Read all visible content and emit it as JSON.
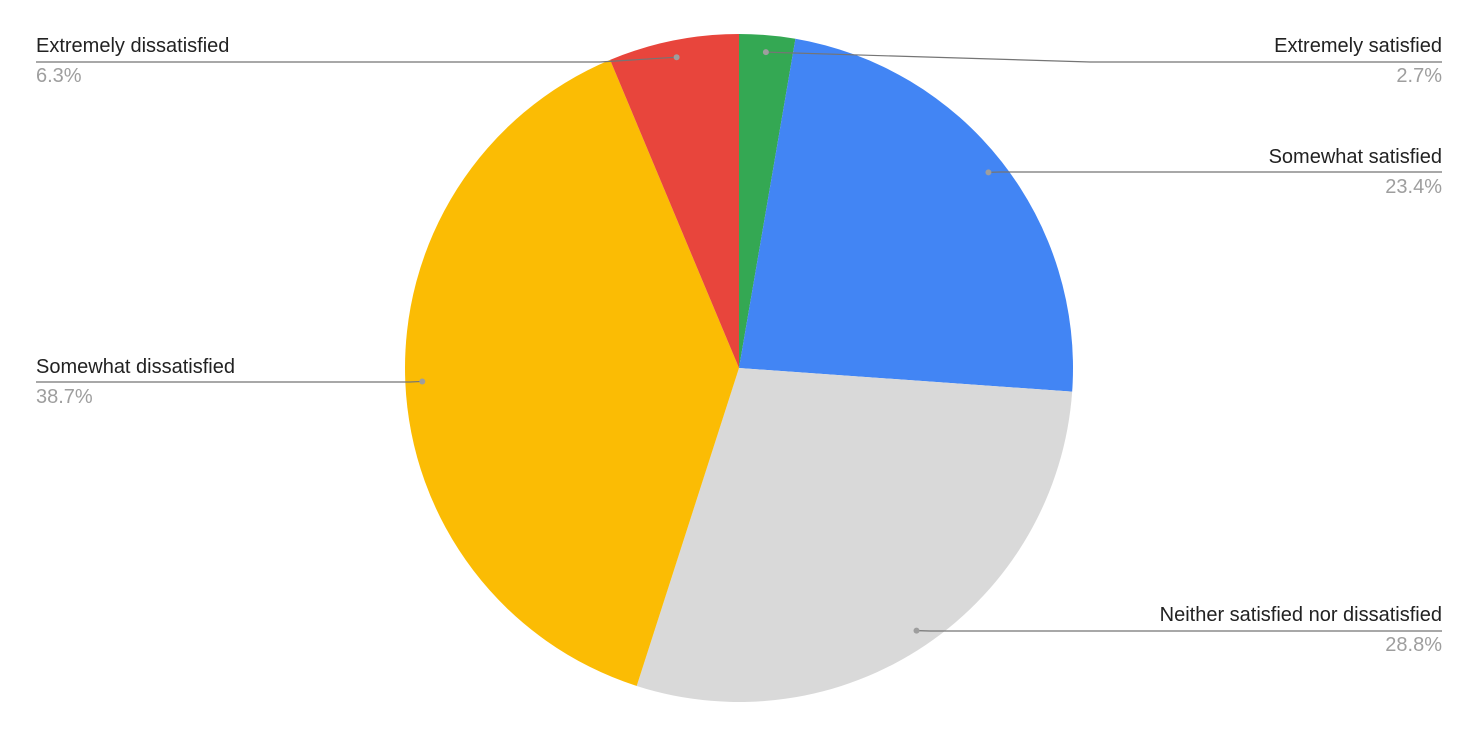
{
  "chart_data": {
    "type": "pie",
    "title": "",
    "start_angle": "12 o'clock, clockwise",
    "slices": [
      {
        "label": "Extremely satisfied",
        "value": 2.7,
        "display": "2.7%",
        "color": "#34a853"
      },
      {
        "label": "Somewhat satisfied",
        "value": 23.4,
        "display": "23.4%",
        "color": "#4285f4"
      },
      {
        "label": "Neither satisfied nor dissatisfied",
        "value": 28.8,
        "display": "28.8%",
        "color": "#d9d9d9"
      },
      {
        "label": "Somewhat dissatisfied",
        "value": 38.7,
        "display": "38.7%",
        "color": "#fbbc04"
      },
      {
        "label": "Extremely dissatisfied",
        "value": 6.3,
        "display": "6.3%",
        "color": "#e8453c"
      }
    ],
    "legend": "none (callout labels)"
  }
}
